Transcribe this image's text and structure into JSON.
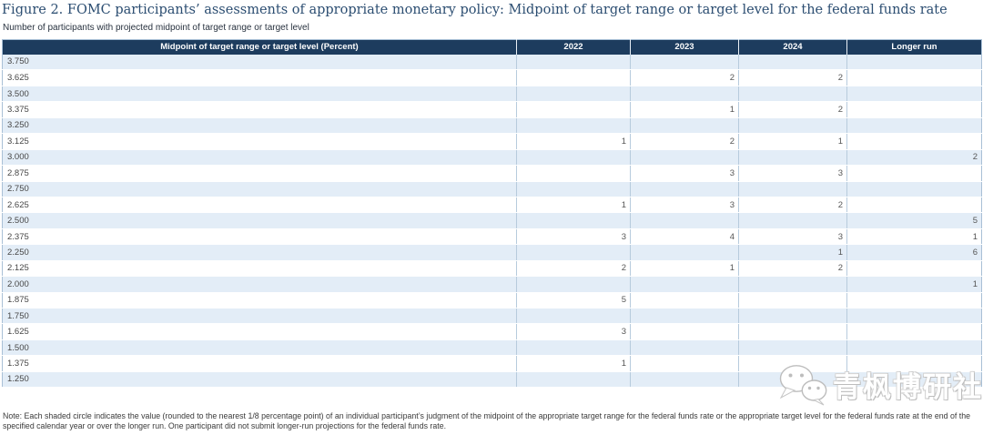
{
  "figure": {
    "title": "Figure 2. FOMC participants’ assessments of appropriate monetary policy: Midpoint of target range or target level for the federal funds rate",
    "subtitle": "Number of participants with projected midpoint of target range or target level",
    "note": "Note: Each shaded circle indicates the value (rounded to the nearest 1/8 percentage point) of an individual participant’s judgment of the midpoint of the appropriate target range for the federal funds rate or the appropriate target level for the federal funds rate at the end of the specified calendar year or over the longer run. One participant did not submit longer-run projections for the federal funds rate."
  },
  "chart_data": {
    "type": "table",
    "title": "Figure 2. FOMC participants’ assessments of appropriate monetary policy: Midpoint of target range or target level for the federal funds rate",
    "subtitle": "Number of participants with projected midpoint of target range or target level",
    "row_header": "Midpoint of target range or target level (Percent)",
    "columns": [
      "2022",
      "2023",
      "2024",
      "Longer run"
    ],
    "rates": [
      3.75,
      3.625,
      3.5,
      3.375,
      3.25,
      3.125,
      3.0,
      2.875,
      2.75,
      2.625,
      2.5,
      2.375,
      2.25,
      2.125,
      2.0,
      1.875,
      1.75,
      1.625,
      1.5,
      1.375,
      1.25
    ],
    "series": [
      {
        "name": "2022",
        "values": [
          null,
          null,
          null,
          null,
          null,
          1,
          null,
          null,
          null,
          1,
          null,
          3,
          null,
          2,
          null,
          5,
          null,
          3,
          null,
          1,
          null
        ]
      },
      {
        "name": "2023",
        "values": [
          null,
          2,
          null,
          1,
          null,
          2,
          null,
          3,
          null,
          3,
          null,
          4,
          null,
          1,
          null,
          null,
          null,
          null,
          null,
          null,
          null
        ]
      },
      {
        "name": "2024",
        "values": [
          null,
          2,
          null,
          2,
          null,
          1,
          null,
          3,
          null,
          2,
          null,
          3,
          1,
          2,
          null,
          null,
          null,
          null,
          null,
          null,
          null
        ]
      },
      {
        "name": "Longer run",
        "values": [
          null,
          null,
          null,
          null,
          null,
          null,
          2,
          null,
          null,
          null,
          5,
          1,
          6,
          null,
          1,
          null,
          null,
          null,
          null,
          null,
          null
        ]
      }
    ],
    "layout": {
      "shaded_row_color": "#e3edf7",
      "header_bg": "#1d3c5e",
      "grid": "horizontal-white-separators"
    }
  },
  "watermark": {
    "icon": "wechat-icon",
    "text": "青枫博研社"
  },
  "colors": {
    "header_bg": "#1d3c5e",
    "row_shaded": "#e3edf7",
    "title_text": "#2b4d71",
    "column_divider": "#b7cbdd"
  }
}
